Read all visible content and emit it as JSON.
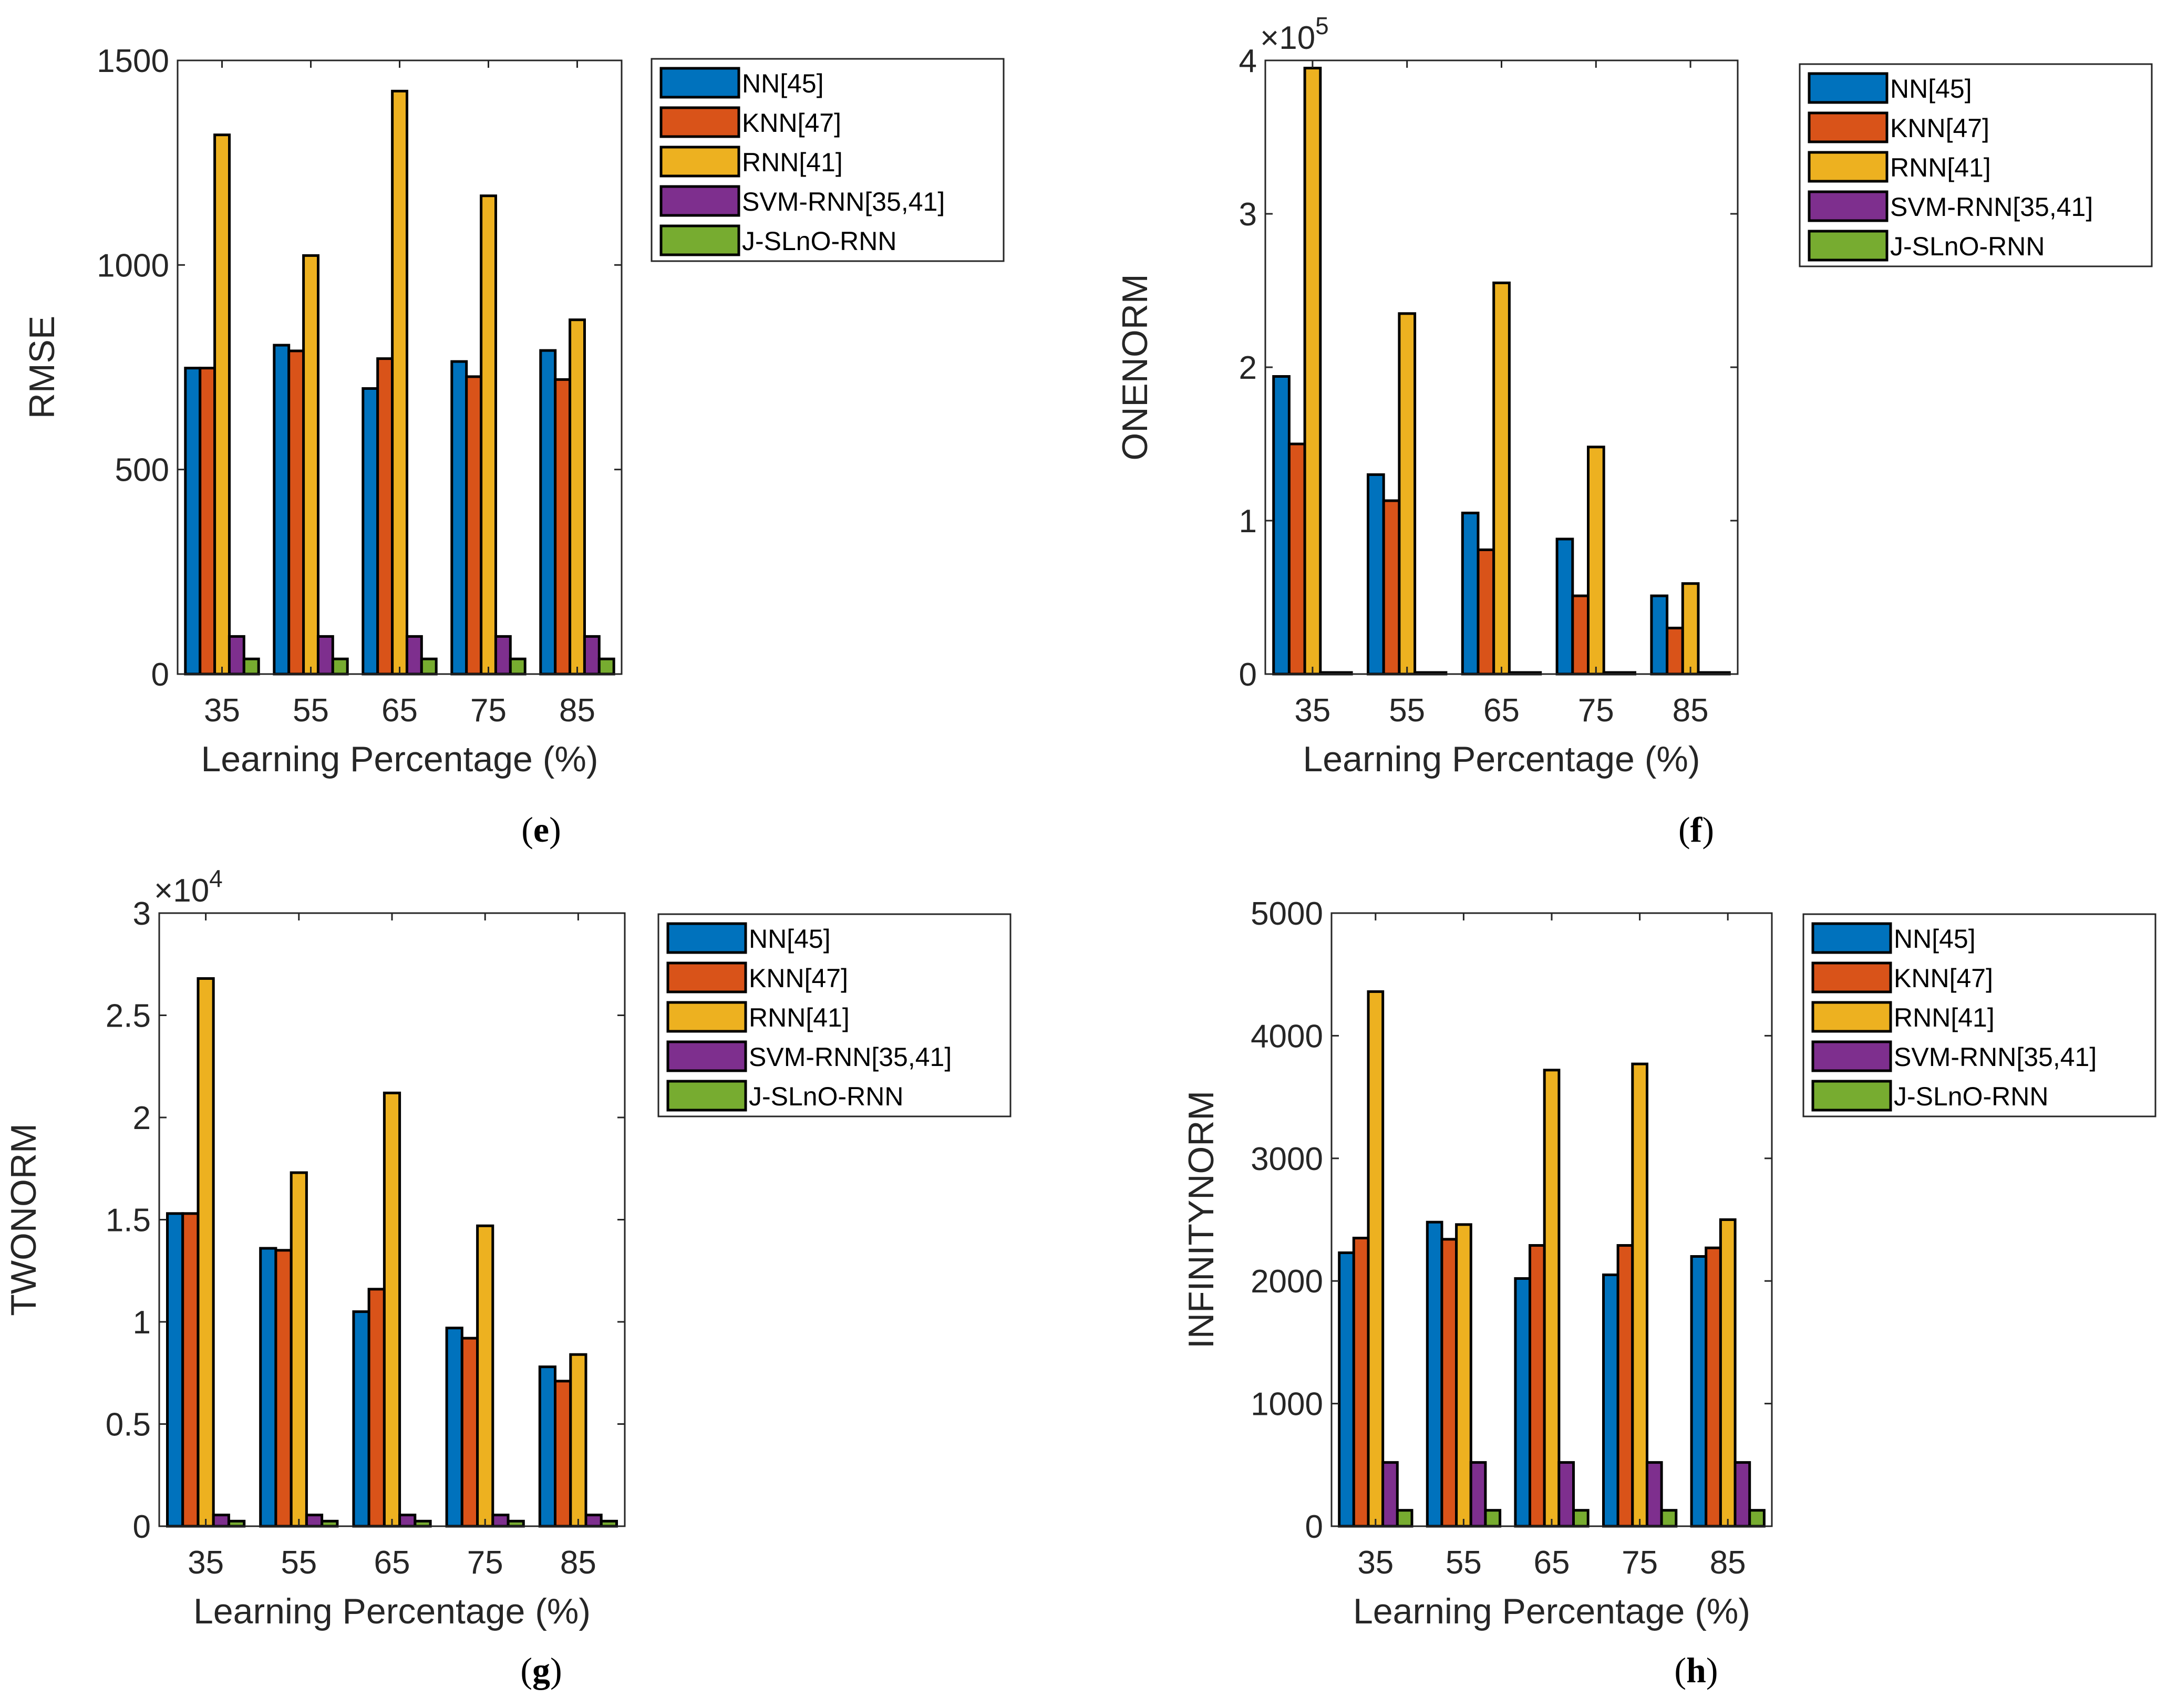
{
  "legend_labels": [
    "NN[45]",
    "KNN[47]",
    "RNN[41]",
    "SVM-RNN[35,41]",
    "J-SLnO-RNN"
  ],
  "colors": [
    "#0072bd",
    "#d95319",
    "#edb120",
    "#7e2f8e",
    "#77ac30"
  ],
  "chart_data": [
    {
      "panel": "e",
      "type": "bar",
      "caption": "(e)",
      "xlabel": "Learning Percentage (%)",
      "ylabel": "RMSE",
      "exponent_label": "",
      "ylim": [
        0,
        1500
      ],
      "yticks": [
        0,
        500,
        1000,
        1500
      ],
      "ytick_labels": [
        "0",
        "500",
        "1000",
        "1500"
      ],
      "categories": [
        "35",
        "55",
        "65",
        "75",
        "85"
      ],
      "series": [
        {
          "name": "NN[45]",
          "values": [
            748,
            804,
            698,
            764,
            791
          ]
        },
        {
          "name": "KNN[47]",
          "values": [
            748,
            790,
            771,
            727,
            720
          ]
        },
        {
          "name": "RNN[41]",
          "values": [
            1318,
            1023,
            1425,
            1169,
            866
          ]
        },
        {
          "name": "SVM-RNN[35,41]",
          "values": [
            92,
            92,
            92,
            92,
            92
          ]
        },
        {
          "name": "J-SLnO-RNN",
          "values": [
            37,
            37,
            37,
            37,
            37
          ]
        }
      ]
    },
    {
      "panel": "f",
      "type": "bar",
      "caption": "(f)",
      "xlabel": "Learning Percentage (%)",
      "ylabel": "ONENORM",
      "exponent_label": "×10",
      "exponent_power": "5",
      "ylim": [
        0,
        400000
      ],
      "yticks": [
        0,
        100000,
        200000,
        300000,
        400000
      ],
      "ytick_labels": [
        "0",
        "1",
        "2",
        "3",
        "4"
      ],
      "categories": [
        "35",
        "55",
        "65",
        "75",
        "85"
      ],
      "series": [
        {
          "name": "NN[45]",
          "values": [
            194000,
            130000,
            105000,
            88000,
            51000
          ]
        },
        {
          "name": "KNN[47]",
          "values": [
            150000,
            113000,
            81000,
            51000,
            30000
          ]
        },
        {
          "name": "RNN[41]",
          "values": [
            395000,
            235000,
            255000,
            148000,
            59000
          ]
        },
        {
          "name": "SVM-RNN[35,41]",
          "values": [
            1000,
            1000,
            1000,
            1000,
            1000
          ]
        },
        {
          "name": "J-SLnO-RNN",
          "values": [
            500,
            500,
            500,
            500,
            500
          ]
        }
      ]
    },
    {
      "panel": "g",
      "type": "bar",
      "caption": "(g)",
      "xlabel": "Learning Percentage (%)",
      "ylabel": "TWONORM",
      "exponent_label": "×10",
      "exponent_power": "4",
      "ylim": [
        0,
        30000
      ],
      "yticks": [
        0,
        5000,
        10000,
        15000,
        20000,
        25000,
        30000
      ],
      "ytick_labels": [
        "0",
        "0.5",
        "1",
        "1.5",
        "2",
        "2.5",
        "3"
      ],
      "categories": [
        "35",
        "55",
        "65",
        "75",
        "85"
      ],
      "series": [
        {
          "name": "NN[45]",
          "values": [
            15300,
            13600,
            10500,
            9700,
            7800
          ]
        },
        {
          "name": "KNN[47]",
          "values": [
            15300,
            13500,
            11600,
            9200,
            7100
          ]
        },
        {
          "name": "RNN[41]",
          "values": [
            26800,
            17300,
            21200,
            14700,
            8400
          ]
        },
        {
          "name": "SVM-RNN[35,41]",
          "values": [
            550,
            550,
            550,
            550,
            550
          ]
        },
        {
          "name": "J-SLnO-RNN",
          "values": [
            250,
            250,
            250,
            250,
            250
          ]
        }
      ]
    },
    {
      "panel": "h",
      "type": "bar",
      "caption": "(h)",
      "xlabel": "Learning Percentage (%)",
      "ylabel": "INFINITYNORM",
      "exponent_label": "",
      "ylim": [
        0,
        5000
      ],
      "yticks": [
        0,
        1000,
        2000,
        3000,
        4000,
        5000
      ],
      "ytick_labels": [
        "0",
        "1000",
        "2000",
        "3000",
        "4000",
        "5000"
      ],
      "categories": [
        "35",
        "55",
        "65",
        "75",
        "85"
      ],
      "series": [
        {
          "name": "NN[45]",
          "values": [
            2230,
            2480,
            2020,
            2050,
            2200
          ]
        },
        {
          "name": "KNN[47]",
          "values": [
            2350,
            2340,
            2290,
            2290,
            2270
          ]
        },
        {
          "name": "RNN[41]",
          "values": [
            4360,
            2460,
            3720,
            3770,
            2500
          ]
        },
        {
          "name": "SVM-RNN[35,41]",
          "values": [
            520,
            520,
            520,
            520,
            520
          ]
        },
        {
          "name": "J-SLnO-RNN",
          "values": [
            130,
            130,
            130,
            130,
            130
          ]
        }
      ]
    }
  ]
}
